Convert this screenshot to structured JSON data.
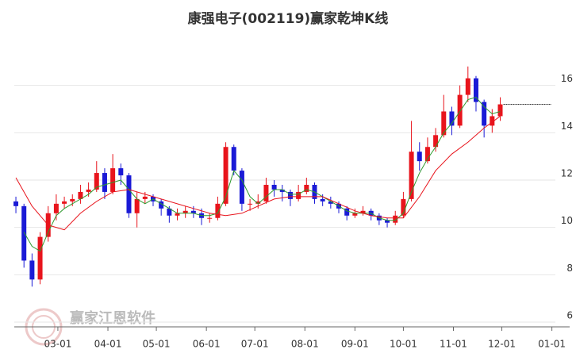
{
  "chart_data": {
    "type": "candlestick",
    "title": "康强电子(002119)赢家乾坤K线",
    "watermark": "赢家江恩软件",
    "up_color": "#e8141c",
    "down_color": "#1a1ad6",
    "x": [
      33,
      38,
      43,
      48,
      53,
      58,
      63,
      68,
      73,
      78,
      83,
      88,
      93,
      98,
      103,
      108,
      113,
      118,
      123,
      128,
      133,
      138,
      143,
      148,
      153,
      158,
      163,
      168,
      173,
      178,
      183,
      188,
      193,
      198,
      203,
      208,
      213,
      218,
      223,
      228,
      233,
      238,
      243,
      248,
      253,
      258,
      263,
      268,
      273,
      278,
      283,
      288,
      293,
      298,
      303,
      308,
      313,
      318,
      323,
      328,
      333
    ],
    "open": [
      11.1,
      10.9,
      8.6,
      7.8,
      9.6,
      10.6,
      11.0,
      11.1,
      11.2,
      11.5,
      11.6,
      12.3,
      11.5,
      12.5,
      12.2,
      10.6,
      11.2,
      11.3,
      11.1,
      10.8,
      10.5,
      10.6,
      10.7,
      10.6,
      10.4,
      10.4,
      11.0,
      13.4,
      12.4,
      11.0,
      11.0,
      11.1,
      11.8,
      11.6,
      11.5,
      11.2,
      11.5,
      11.8,
      11.2,
      11.1,
      11.0,
      10.8,
      10.5,
      10.6,
      10.7,
      10.5,
      10.3,
      10.2,
      10.5,
      11.2,
      13.2,
      12.8,
      13.4,
      13.9,
      14.9,
      14.3,
      15.6,
      16.3,
      15.3,
      14.3,
      14.7
    ],
    "high": [
      11.3,
      11.0,
      8.9,
      9.8,
      10.9,
      11.4,
      11.3,
      11.4,
      11.8,
      11.9,
      12.8,
      12.5,
      13.1,
      12.7,
      12.3,
      11.5,
      11.5,
      11.4,
      11.2,
      10.9,
      10.8,
      10.9,
      10.9,
      10.8,
      10.6,
      11.3,
      13.6,
      13.5,
      12.5,
      11.2,
      11.4,
      12.1,
      12.0,
      11.8,
      11.6,
      11.8,
      12.1,
      11.9,
      11.4,
      11.3,
      11.1,
      10.9,
      10.8,
      10.9,
      10.8,
      10.6,
      10.4,
      10.7,
      11.5,
      14.5,
      13.6,
      13.8,
      14.2,
      15.6,
      15.1,
      16.0,
      16.8,
      16.4,
      15.4,
      15.0,
      15.5
    ],
    "low": [
      10.6,
      8.3,
      7.5,
      7.6,
      9.4,
      10.3,
      10.8,
      10.9,
      11.0,
      11.3,
      11.5,
      11.2,
      11.4,
      11.8,
      10.4,
      10.0,
      11.0,
      10.9,
      10.5,
      10.2,
      10.3,
      10.4,
      10.4,
      10.1,
      10.2,
      10.3,
      10.9,
      12.2,
      10.7,
      10.7,
      10.8,
      11.0,
      11.3,
      11.1,
      10.9,
      11.1,
      11.4,
      11.0,
      10.9,
      10.8,
      10.6,
      10.3,
      10.4,
      10.5,
      10.3,
      10.1,
      10.0,
      10.1,
      10.4,
      11.1,
      12.4,
      12.7,
      13.2,
      13.8,
      13.9,
      14.2,
      15.3,
      14.9,
      13.8,
      14.0,
      14.5
    ],
    "close": [
      10.9,
      8.6,
      7.8,
      9.6,
      10.6,
      11.0,
      11.1,
      11.2,
      11.5,
      11.6,
      12.3,
      11.5,
      12.5,
      12.2,
      10.6,
      11.2,
      11.3,
      11.1,
      10.8,
      10.5,
      10.6,
      10.7,
      10.6,
      10.4,
      10.4,
      11.0,
      13.4,
      12.4,
      11.0,
      11.0,
      11.1,
      11.8,
      11.6,
      11.5,
      11.2,
      11.5,
      11.8,
      11.2,
      11.1,
      11.0,
      10.8,
      10.5,
      10.6,
      10.7,
      10.5,
      10.3,
      10.2,
      10.5,
      11.2,
      13.2,
      12.8,
      13.4,
      13.9,
      14.9,
      14.3,
      15.6,
      16.3,
      15.3,
      14.3,
      14.7,
      15.2
    ],
    "lines": [
      {
        "color": "#2e9a2e",
        "x": [
          38,
          43,
          48,
          53,
          58,
          63,
          68,
          73,
          78,
          83,
          88,
          93,
          98,
          103,
          108,
          113,
          118,
          123,
          128,
          133,
          138,
          143,
          148,
          153,
          158,
          163,
          168,
          173,
          178,
          183,
          188,
          193,
          198,
          203,
          208,
          213,
          218,
          223,
          228,
          233,
          238,
          243,
          248,
          253,
          258,
          263,
          268,
          273,
          278,
          283,
          288,
          293,
          298,
          303,
          308,
          313,
          318,
          323,
          328,
          333
        ],
        "values": [
          9.8,
          9.2,
          9.0,
          9.8,
          10.5,
          10.8,
          11.0,
          11.2,
          11.4,
          11.7,
          11.8,
          11.9,
          12.0,
          11.6,
          11.2,
          11.0,
          11.2,
          11.0,
          10.8,
          10.6,
          10.6,
          10.6,
          10.5,
          10.5,
          10.6,
          11.3,
          12.4,
          12.0,
          11.3,
          11.0,
          11.3,
          11.6,
          11.6,
          11.4,
          11.4,
          11.6,
          11.5,
          11.3,
          11.1,
          10.9,
          10.7,
          10.6,
          10.6,
          10.6,
          10.4,
          10.3,
          10.3,
          10.6,
          11.5,
          12.3,
          12.9,
          13.4,
          14.0,
          14.4,
          14.9,
          15.4,
          15.5,
          15.1,
          14.8,
          14.9
        ]
      },
      {
        "color": "#e8141c",
        "x": [
          33,
          43,
          53,
          63,
          73,
          83,
          93,
          103,
          113,
          123,
          133,
          143,
          153,
          163,
          173,
          183,
          193,
          203,
          213,
          223,
          233,
          243,
          253,
          263,
          273,
          283,
          293,
          303,
          313,
          323,
          333
        ],
        "values": [
          12.1,
          10.9,
          10.1,
          9.9,
          10.6,
          11.1,
          11.5,
          11.6,
          11.4,
          11.2,
          11.0,
          10.8,
          10.6,
          10.5,
          10.6,
          10.9,
          11.2,
          11.3,
          11.3,
          11.3,
          11.0,
          10.7,
          10.5,
          10.4,
          10.4,
          11.3,
          12.4,
          13.1,
          13.6,
          14.2,
          14.7
        ]
      }
    ],
    "xlim": [
      32,
      376
    ],
    "xticks": [
      {
        "value": 59,
        "label": "03-01"
      },
      {
        "value": 90,
        "label": "04-01"
      },
      {
        "value": 120,
        "label": "05-01"
      },
      {
        "value": 151,
        "label": "06-01"
      },
      {
        "value": 181,
        "label": "07-01"
      },
      {
        "value": 212,
        "label": "08-01"
      },
      {
        "value": 243,
        "label": "09-01"
      },
      {
        "value": 273,
        "label": "10-01"
      },
      {
        "value": 304,
        "label": "11-01"
      },
      {
        "value": 334,
        "label": "12-01"
      },
      {
        "value": 365,
        "label": "01-01"
      }
    ],
    "ylim": [
      5.8,
      18.1
    ],
    "yticks": [
      6,
      8,
      10,
      12,
      14,
      16
    ],
    "grid": true
  }
}
